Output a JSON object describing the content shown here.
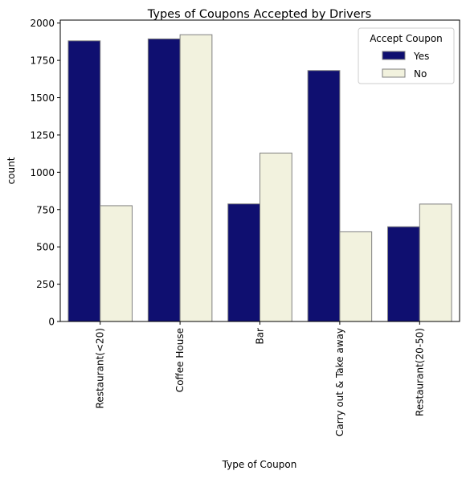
{
  "chart_data": {
    "type": "bar",
    "title": "Types of Coupons Accepted by Drivers",
    "xlabel": "Type of Coupon",
    "ylabel": "count",
    "categories": [
      "Restaurant(<20)",
      "Coffee House",
      "Bar",
      "Carry out & Take away",
      "Restaurant(20-50)"
    ],
    "series": [
      {
        "name": "Yes",
        "values": [
          1881,
          1894,
          788,
          1682,
          635
        ],
        "color": "#0f0f70"
      },
      {
        "name": "No",
        "values": [
          776,
          1922,
          1129,
          601,
          787
        ],
        "color": "#f2f2de"
      }
    ],
    "ylim": [
      0,
      2020
    ],
    "yticks": [
      0,
      250,
      500,
      750,
      1000,
      1250,
      1500,
      1750,
      2000
    ],
    "legend": {
      "title": "Accept Coupon",
      "placement": "top-right"
    },
    "grid": false,
    "edge_color": "#808080"
  }
}
